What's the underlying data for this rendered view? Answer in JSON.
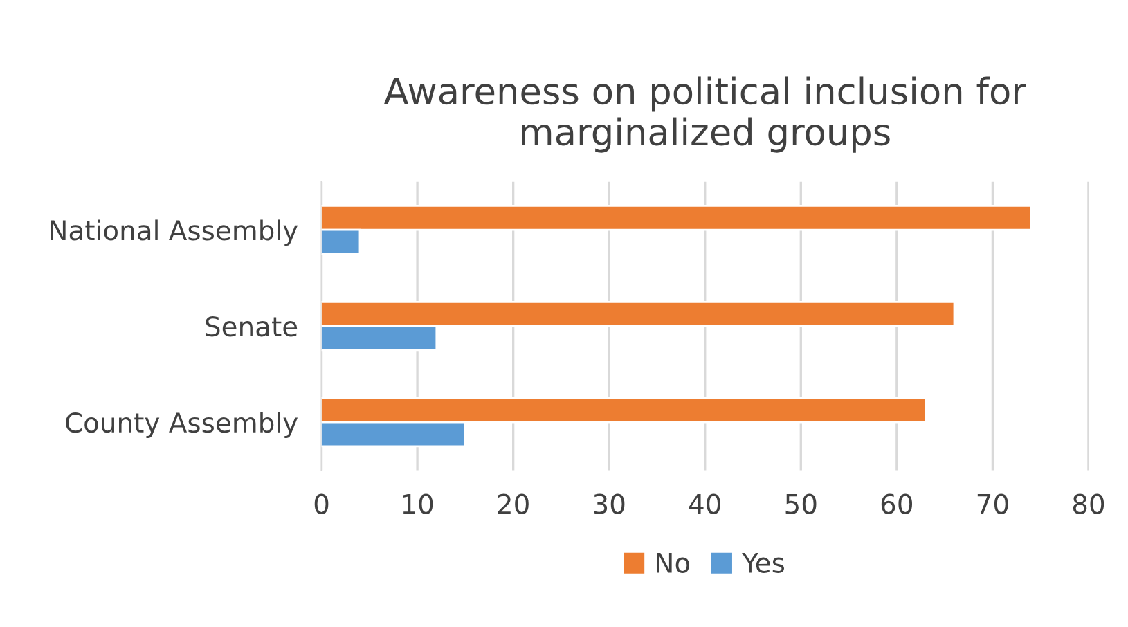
{
  "chart_data": {
    "type": "bar",
    "orientation": "horizontal",
    "title": "Awareness on political inclusion for marginalized groups",
    "categories": [
      "National Assembly",
      "Senate",
      "County Assembly"
    ],
    "series": [
      {
        "name": "No",
        "color": "#ed7d31",
        "values": [
          74,
          66,
          63
        ]
      },
      {
        "name": "Yes",
        "color": "#5b9bd5",
        "values": [
          4,
          12,
          15
        ]
      }
    ],
    "xlim": [
      0,
      80
    ],
    "xticks": [
      0,
      10,
      20,
      30,
      40,
      50,
      60,
      70,
      80
    ],
    "grid": "x",
    "legend": "bottom"
  }
}
